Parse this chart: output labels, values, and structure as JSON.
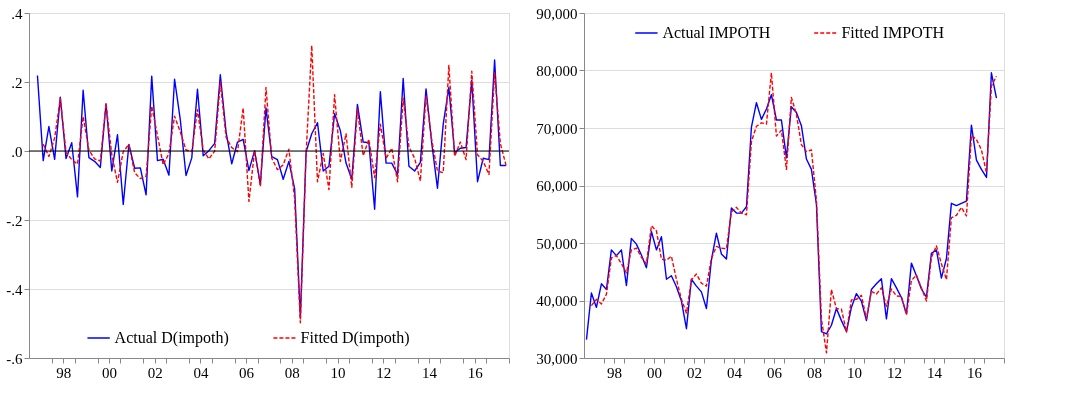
{
  "chart_data": [
    {
      "type": "line",
      "x": [
        "1997-05-16",
        "1997-08-16",
        "1997-11-15",
        "1998-02-15",
        "1998-05-16",
        "1998-08-16",
        "1998-11-15",
        "1999-02-15",
        "1999-05-16",
        "1999-08-16",
        "1999-11-15",
        "2000-02-15",
        "2000-05-16",
        "2000-08-16",
        "2000-11-15",
        "2001-02-15",
        "2001-05-16",
        "2001-08-16",
        "2001-11-15",
        "2002-02-15",
        "2002-05-16",
        "2002-08-16",
        "2002-11-15",
        "2003-02-15",
        "2003-05-16",
        "2003-08-16",
        "2003-11-15",
        "2004-02-15",
        "2004-05-16",
        "2004-08-16",
        "2004-11-15",
        "2005-02-15",
        "2005-05-16",
        "2005-08-16",
        "2005-11-15",
        "2006-02-15",
        "2006-05-16",
        "2006-08-16",
        "2006-11-15",
        "2007-02-15",
        "2007-05-16",
        "2007-08-16",
        "2007-11-15",
        "2008-02-15",
        "2008-05-16",
        "2008-08-16",
        "2008-11-15",
        "2009-02-15",
        "2009-05-16",
        "2009-08-16",
        "2009-11-15",
        "2010-02-15",
        "2010-05-16",
        "2010-08-16",
        "2010-11-15",
        "2011-02-15",
        "2011-05-16",
        "2011-08-16",
        "2011-11-15",
        "2012-02-15",
        "2012-05-16",
        "2012-08-16",
        "2012-11-15",
        "2013-02-15",
        "2013-05-16",
        "2013-08-16",
        "2013-11-15",
        "2014-02-15",
        "2014-05-16",
        "2014-08-16",
        "2014-11-15",
        "2015-02-15",
        "2015-05-16",
        "2015-08-16",
        "2015-11-15",
        "2016-02-15",
        "2016-05-16",
        "2016-08-16",
        "2016-11-15",
        "2017-02-15",
        "2017-05-16",
        "2017-08-16",
        "2017-11-15"
      ],
      "series": [
        {
          "name": "Actual D(impoth)",
          "color": "#0000ff",
          "line_style": "solid",
          "values": [
            0.219,
            -0.028,
            0.071,
            -0.024,
            0.156,
            -0.022,
            0.024,
            -0.133,
            0.176,
            -0.019,
            -0.03,
            -0.048,
            0.137,
            -0.058,
            0.047,
            -0.155,
            0.019,
            -0.05,
            -0.049,
            -0.127,
            0.217,
            -0.028,
            -0.024,
            -0.07,
            0.208,
            0.09,
            -0.071,
            -0.02,
            0.179,
            -0.014,
            0.001,
            0.022,
            0.221,
            0.055,
            -0.037,
            0.026,
            0.034,
            -0.057,
            0.001,
            -0.097,
            0.125,
            -0.016,
            -0.025,
            -0.082,
            -0.03,
            -0.11,
            -0.482,
            -0.002,
            0.05,
            0.082,
            -0.058,
            -0.044,
            0.108,
            0.059,
            -0.035,
            -0.082,
            0.135,
            0.026,
            0.024,
            -0.169,
            0.172,
            -0.035,
            -0.035,
            -0.068,
            0.21,
            -0.044,
            -0.058,
            -0.033,
            0.18,
            0.022,
            -0.108,
            0.078,
            0.184,
            -0.005,
            0.008,
            0.01,
            0.205,
            -0.089,
            -0.021,
            -0.025,
            0.264,
            -0.042,
            -0.042
          ]
        },
        {
          "name": "Fitted D(impoth)",
          "color": "#ff0000",
          "line_style": "dashed",
          "values": [
            null,
            0.02,
            -0.016,
            0.038,
            0.152,
            -0.004,
            -0.025,
            -0.038,
            0.1,
            0.003,
            -0.023,
            -0.029,
            0.137,
            -0.011,
            -0.091,
            -0.002,
            0.019,
            -0.063,
            -0.08,
            -0.073,
            0.13,
            0.045,
            -0.04,
            -0.007,
            0.101,
            0.055,
            0.003,
            -0.002,
            0.12,
            0.003,
            -0.023,
            0,
            0.2,
            0.04,
            0.01,
            -0.002,
            0.125,
            -0.146,
            0.001,
            -0.103,
            0.184,
            -0.021,
            -0.054,
            -0.04,
            0.005,
            -0.138,
            -0.498,
            -0.007,
            0.306,
            -0.089,
            -0.007,
            -0.112,
            0.163,
            -0.03,
            0.05,
            -0.105,
            0.121,
            -0.014,
            0.034,
            -0.077,
            0.078,
            -0.021,
            0.008,
            -0.089,
            0.153,
            0.012,
            -0.021,
            -0.087,
            0.161,
            0.031,
            -0.058,
            -0.063,
            0.248,
            -0.016,
            0.026,
            -0.025,
            0.231,
            -0.011,
            -0.03,
            -0.068,
            0.227,
            0.022,
            -0.042
          ]
        }
      ],
      "xlim": [
        "1997",
        "2018"
      ],
      "xticks": [
        {
          "value": "1998",
          "label": null
        },
        {
          "value": "1998-07-02",
          "label": "98"
        },
        {
          "value": "1999",
          "label": null
        },
        {
          "value": "2000",
          "label": null
        },
        {
          "value": "2000-07-02",
          "label": "00"
        },
        {
          "value": "2001",
          "label": null
        },
        {
          "value": "2002",
          "label": null
        },
        {
          "value": "2002-07-02",
          "label": "02"
        },
        {
          "value": "2003",
          "label": null
        },
        {
          "value": "2004",
          "label": null
        },
        {
          "value": "2004-07-02",
          "label": "04"
        },
        {
          "value": "2005",
          "label": null
        },
        {
          "value": "2006",
          "label": null
        },
        {
          "value": "2006-07-02",
          "label": "06"
        },
        {
          "value": "2007",
          "label": null
        },
        {
          "value": "2008",
          "label": null
        },
        {
          "value": "2008-07-02",
          "label": "08"
        },
        {
          "value": "2009",
          "label": null
        },
        {
          "value": "2010",
          "label": null
        },
        {
          "value": "2010-07-02",
          "label": "10"
        },
        {
          "value": "2011",
          "label": null
        },
        {
          "value": "2012",
          "label": null
        },
        {
          "value": "2012-07-02",
          "label": "12"
        },
        {
          "value": "2013",
          "label": null
        },
        {
          "value": "2014",
          "label": null
        },
        {
          "value": "2014-07-02",
          "label": "14"
        },
        {
          "value": "2015",
          "label": null
        },
        {
          "value": "2016",
          "label": null
        },
        {
          "value": "2016-07-02",
          "label": "16"
        },
        {
          "value": "2017",
          "label": null
        },
        {
          "value": "2018",
          "label": null
        }
      ],
      "ylim": [
        -0.6,
        0.4
      ],
      "yticks": [
        {
          "value": -0.6,
          "label": "-.6"
        },
        {
          "value": -0.4,
          "label": "-.4"
        },
        {
          "value": -0.2,
          "label": "-.2"
        },
        {
          "value": 0,
          "label": ".0"
        },
        {
          "value": 0.2,
          "label": ".2"
        },
        {
          "value": 0.4,
          "label": ".4"
        }
      ],
      "ref_lines": [
        {
          "axis": "y",
          "value": 0,
          "color": "#000000"
        }
      ],
      "grid": "y",
      "legend": "bottom"
    },
    {
      "type": "line",
      "x": [
        "1997-02-15",
        "1997-05-16",
        "1997-08-16",
        "1997-11-15",
        "1998-02-15",
        "1998-05-16",
        "1998-08-16",
        "1998-11-15",
        "1999-02-15",
        "1999-05-16",
        "1999-08-16",
        "1999-11-15",
        "2000-02-15",
        "2000-05-16",
        "2000-08-16",
        "2000-11-15",
        "2001-02-15",
        "2001-05-16",
        "2001-08-16",
        "2001-11-15",
        "2002-02-15",
        "2002-05-16",
        "2002-08-16",
        "2002-11-15",
        "2003-02-15",
        "2003-05-16",
        "2003-08-16",
        "2003-11-15",
        "2004-02-15",
        "2004-05-16",
        "2004-08-16",
        "2004-11-15",
        "2005-02-15",
        "2005-05-16",
        "2005-08-16",
        "2005-11-15",
        "2006-02-15",
        "2006-05-16",
        "2006-08-16",
        "2006-11-15",
        "2007-02-15",
        "2007-05-16",
        "2007-08-16",
        "2007-11-15",
        "2008-02-15",
        "2008-05-16",
        "2008-08-16",
        "2008-11-15",
        "2009-02-15",
        "2009-05-16",
        "2009-08-16",
        "2009-11-15",
        "2010-02-15",
        "2010-05-16",
        "2010-08-16",
        "2010-11-15",
        "2011-02-15",
        "2011-05-16",
        "2011-08-16",
        "2011-11-15",
        "2012-02-15",
        "2012-05-16",
        "2012-08-16",
        "2012-11-15",
        "2013-02-15",
        "2013-05-16",
        "2013-08-16",
        "2013-11-15",
        "2014-02-15",
        "2014-05-16",
        "2014-08-16",
        "2014-11-15",
        "2015-02-15",
        "2015-05-16",
        "2015-08-16",
        "2015-11-15",
        "2016-02-15",
        "2016-05-16",
        "2016-08-16",
        "2016-11-15",
        "2017-02-15",
        "2017-05-16",
        "2017-08-16"
      ],
      "series": [
        {
          "name": "Actual IMPOTH",
          "color": "#0000ff",
          "line_style": "solid",
          "values": [
            33200,
            41300,
            38800,
            42900,
            41900,
            48800,
            47800,
            48800,
            42600,
            50800,
            49800,
            47900,
            45700,
            52000,
            48800,
            51100,
            43700,
            44300,
            42400,
            39900,
            35100,
            43700,
            42500,
            41500,
            38600,
            47000,
            51700,
            48100,
            47200,
            56100,
            55200,
            55200,
            56300,
            70100,
            74400,
            71500,
            73300,
            75800,
            71400,
            71400,
            64800,
            73700,
            72700,
            70400,
            64600,
            62800,
            56700,
            34600,
            34200,
            35700,
            38600,
            36500,
            34600,
            38800,
            41200,
            39900,
            36500,
            41900,
            42900,
            43800,
            36800,
            43800,
            42200,
            40500,
            37700,
            46500,
            44300,
            42000,
            40600,
            48200,
            48800,
            43900,
            47300,
            56900,
            56500,
            56900,
            57300,
            70500,
            64400,
            62800,
            61400,
            79600,
            75200
          ]
        },
        {
          "name": "Fitted IMPOTH",
          "color": "#ff0000",
          "line_style": "dashed",
          "values": [
            null,
            39100,
            40200,
            39400,
            41100,
            47400,
            47800,
            46400,
            44800,
            48800,
            49100,
            47500,
            46400,
            53000,
            52100,
            47200,
            47000,
            47700,
            43700,
            40200,
            37800,
            43600,
            44600,
            43000,
            42500,
            47300,
            49400,
            49100,
            49000,
            55400,
            56200,
            55200,
            54900,
            67600,
            70300,
            70900,
            70700,
            79600,
            68600,
            69600,
            62800,
            75300,
            72400,
            67100,
            65900,
            66200,
            57400,
            36800,
            30900,
            41900,
            38600,
            38500,
            34500,
            40100,
            40200,
            40900,
            36800,
            41600,
            41100,
            42200,
            39000,
            42000,
            40800,
            40700,
            37500,
            43500,
            44400,
            42200,
            39900,
            47500,
            49500,
            46400,
            43600,
            54400,
            54800,
            56200,
            54700,
            68700,
            68000,
            66200,
            62200,
            77300,
            79000
          ]
        }
      ],
      "xlim": [
        "1997",
        "2018"
      ],
      "xticks": [
        {
          "value": "1998",
          "label": null
        },
        {
          "value": "1998-07-02",
          "label": "98"
        },
        {
          "value": "1999",
          "label": null
        },
        {
          "value": "2000",
          "label": null
        },
        {
          "value": "2000-07-02",
          "label": "00"
        },
        {
          "value": "2001",
          "label": null
        },
        {
          "value": "2002",
          "label": null
        },
        {
          "value": "2002-07-02",
          "label": "02"
        },
        {
          "value": "2003",
          "label": null
        },
        {
          "value": "2004",
          "label": null
        },
        {
          "value": "2004-07-02",
          "label": "04"
        },
        {
          "value": "2005",
          "label": null
        },
        {
          "value": "2006",
          "label": null
        },
        {
          "value": "2006-07-02",
          "label": "06"
        },
        {
          "value": "2007",
          "label": null
        },
        {
          "value": "2008",
          "label": null
        },
        {
          "value": "2008-07-02",
          "label": "08"
        },
        {
          "value": "2009",
          "label": null
        },
        {
          "value": "2010",
          "label": null
        },
        {
          "value": "2010-07-02",
          "label": "10"
        },
        {
          "value": "2011",
          "label": null
        },
        {
          "value": "2012",
          "label": null
        },
        {
          "value": "2012-07-02",
          "label": "12"
        },
        {
          "value": "2013",
          "label": null
        },
        {
          "value": "2014",
          "label": null
        },
        {
          "value": "2014-07-02",
          "label": "14"
        },
        {
          "value": "2015",
          "label": null
        },
        {
          "value": "2016",
          "label": null
        },
        {
          "value": "2016-07-02",
          "label": "16"
        },
        {
          "value": "2017",
          "label": null
        },
        {
          "value": "2018",
          "label": null
        }
      ],
      "ylim": [
        30000,
        90000
      ],
      "yticks": [
        {
          "value": 30000,
          "label": "30,000"
        },
        {
          "value": 40000,
          "label": "40,000"
        },
        {
          "value": 50000,
          "label": "50,000"
        },
        {
          "value": 60000,
          "label": "60,000"
        },
        {
          "value": 70000,
          "label": "70,000"
        },
        {
          "value": 80000,
          "label": "80,000"
        },
        {
          "value": 90000,
          "label": "90,000"
        }
      ],
      "grid": "y",
      "legend": "top"
    }
  ]
}
